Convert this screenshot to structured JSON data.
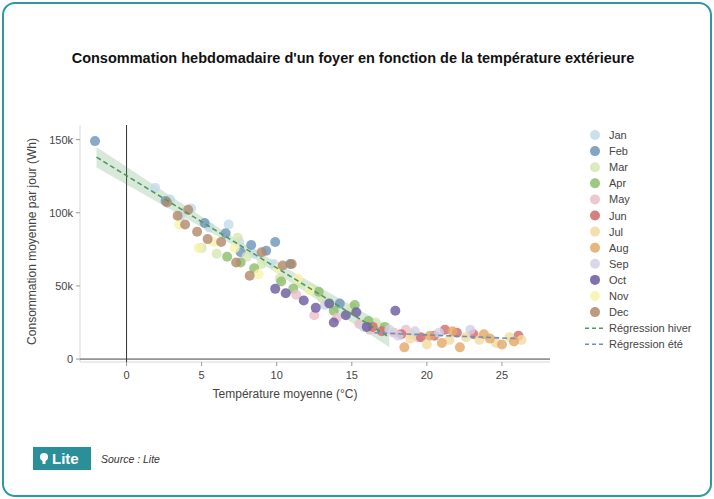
{
  "chart_data": {
    "type": "scatter",
    "title": "Consommation hebdomadaire d'un foyer en fonction de la température extérieure",
    "x_label": "Température moyenne (°C)",
    "y_label": "Consommation moyenne par jour (Wh)",
    "source": "Source : Lite",
    "logo": "Lite",
    "xlim": [
      -3.1,
      28.2
    ],
    "ylim": [
      -2000,
      160000
    ],
    "xticks": [
      0,
      5,
      10,
      15,
      20,
      25
    ],
    "yticks": [
      0,
      {
        "value": 50000,
        "label": "50k"
      },
      {
        "value": 100000,
        "label": "100k"
      },
      {
        "value": 150000,
        "label": "150k"
      }
    ],
    "grid": false,
    "legend": "right",
    "series": [
      {
        "name": "Jan",
        "color": "#c3dbe8",
        "x": [
          1.9,
          2.9,
          4.3,
          5.5,
          6.8,
          7.5,
          8.5,
          9.8,
          3.6
        ],
        "values": [
          117000,
          109000,
          103000,
          90000,
          92000,
          80000,
          72000,
          65000,
          98000
        ]
      },
      {
        "name": "Feb",
        "color": "#6b95b8",
        "x": [
          -2.1,
          2.6,
          5.2,
          6.6,
          8.3,
          9.3,
          9.9,
          10.9,
          7.6,
          14.2
        ],
        "values": [
          149000,
          108000,
          93000,
          86000,
          78000,
          74000,
          80000,
          65000,
          73000,
          38000
        ]
      },
      {
        "name": "Mar",
        "color": "#d6e6b4",
        "x": [
          5,
          6,
          7.4,
          8,
          9,
          10.2,
          11.5,
          12.3,
          13,
          15,
          16.6
        ],
        "values": [
          76000,
          72000,
          83000,
          70000,
          65000,
          55000,
          52000,
          48000,
          42000,
          35000,
          25000
        ]
      },
      {
        "name": "Apr",
        "color": "#8cbd6c",
        "x": [
          6.7,
          7.6,
          8.5,
          10.3,
          11.1,
          12.8,
          13.8,
          15.2,
          16.1,
          17.2
        ],
        "values": [
          70000,
          66000,
          62000,
          53000,
          48000,
          46000,
          33000,
          37000,
          26000,
          22000
        ]
      },
      {
        "name": "May",
        "color": "#e8bfc8",
        "x": [
          11.3,
          12.5,
          14,
          15.5,
          16.2,
          17.8,
          18.6,
          19.4
        ],
        "values": [
          44000,
          30000,
          28000,
          24000,
          20000,
          18000,
          20000,
          15000
        ]
      },
      {
        "name": "Jun",
        "color": "#cf6a6a",
        "x": [
          16.4,
          17,
          18.3,
          19.6,
          20.5,
          21.2,
          22,
          23.1,
          26.1
        ],
        "values": [
          22000,
          19000,
          17000,
          15000,
          16000,
          20000,
          18000,
          17000,
          16000
        ]
      },
      {
        "name": "Jul",
        "color": "#f0dba0",
        "x": [
          18.9,
          20,
          21.5,
          22.6,
          23.5,
          24.6,
          25.5,
          26.3,
          19
        ],
        "values": [
          14000,
          10000,
          13000,
          15000,
          13000,
          11000,
          15000,
          13000,
          17000
        ]
      },
      {
        "name": "Aug",
        "color": "#e3a866",
        "x": [
          18.5,
          20.2,
          21,
          22.2,
          23.8,
          24.2,
          25,
          25.8,
          21.7
        ],
        "values": [
          8000,
          16000,
          11000,
          8000,
          17000,
          14000,
          10000,
          12000,
          19000
        ]
      },
      {
        "name": "Sep",
        "color": "#d3d0e8",
        "x": [
          15.8,
          17.5,
          18.1,
          19.2,
          20.8,
          22.9,
          13.2
        ],
        "values": [
          22000,
          20000,
          16000,
          19000,
          18000,
          20000,
          37000
        ]
      },
      {
        "name": "Oct",
        "color": "#6a5a9e",
        "x": [
          9.9,
          10.6,
          11.8,
          13.5,
          14.6,
          15.3,
          16,
          17.9,
          12.6,
          13.8
        ],
        "values": [
          48000,
          45000,
          40000,
          38000,
          30000,
          32000,
          22000,
          33000,
          35000,
          25000
        ]
      },
      {
        "name": "Nov",
        "color": "#f8f3ad",
        "x": [
          4.8,
          5.8,
          7.2,
          8.8,
          10.1,
          11.4,
          12.2,
          3.5
        ],
        "values": [
          76000,
          80000,
          76000,
          58000,
          62000,
          55000,
          47000,
          92000
        ]
      },
      {
        "name": "Dec",
        "color": "#b08a6a",
        "x": [
          2.7,
          3.4,
          4.1,
          4.7,
          5.4,
          6.3,
          7.3,
          8.2,
          9,
          10.4,
          11,
          3.9
        ],
        "values": [
          107000,
          98000,
          102000,
          87000,
          82000,
          80000,
          66000,
          57000,
          73000,
          64000,
          65000,
          92000
        ]
      },
      {
        "name": "Régression hiver",
        "type": "line",
        "line_style": "dashed",
        "color": "#4f9a5c",
        "x": [
          -2,
          7.5,
          17.5
        ],
        "values": [
          138000,
          78100,
          15000
        ],
        "error": [
          7000,
          2500,
          7000
        ]
      },
      {
        "name": "Régression été",
        "type": "line",
        "line_style": "dashed",
        "color": "#6f8fb0",
        "x": [
          16.5,
          26
        ],
        "values": [
          18000,
          14000
        ]
      }
    ]
  }
}
